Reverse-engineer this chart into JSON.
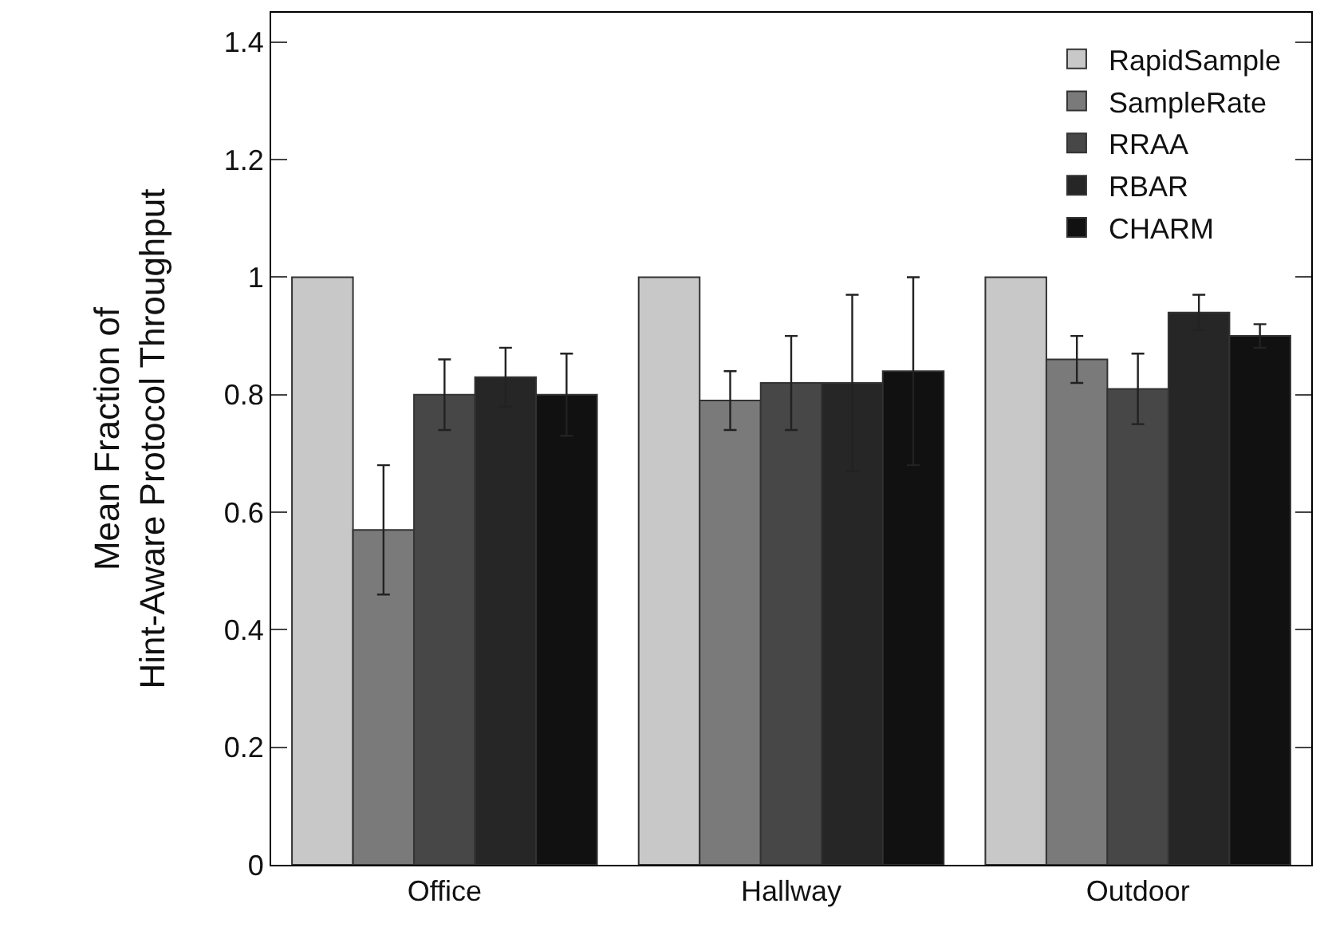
{
  "chart_data": {
    "type": "bar",
    "ylabel": "Mean Fraction of\nHint-Aware Protocol Throughput",
    "categories": [
      "Office",
      "Hallway",
      "Outdoor"
    ],
    "series": [
      {
        "name": "RapidSample",
        "color": "#c8c8c8",
        "values": [
          1,
          1,
          1
        ]
      },
      {
        "name": "SampleRate",
        "color": "#7a7a7a",
        "values": [
          0.57,
          0.79,
          0.86
        ],
        "errors": [
          0.11,
          0.05,
          0.04
        ]
      },
      {
        "name": "RRAA",
        "color": "#474747",
        "values": [
          0.8,
          0.82,
          0.81
        ],
        "errors": [
          0.06,
          0.08,
          0.06
        ]
      },
      {
        "name": "RBAR",
        "color": "#262626",
        "values": [
          0.83,
          0.82,
          0.94
        ],
        "errors": [
          0.05,
          0.15,
          0.03
        ]
      },
      {
        "name": "CHARM",
        "color": "#111111",
        "values": [
          0.8,
          0.84,
          0.9
        ],
        "errors": [
          0.07,
          0.16,
          0.02
        ]
      }
    ],
    "ylim": [
      0,
      1.45
    ],
    "yticks": [
      0,
      0.2,
      0.4,
      0.6,
      0.8,
      1,
      1.2,
      1.4
    ],
    "legend": "top right"
  }
}
